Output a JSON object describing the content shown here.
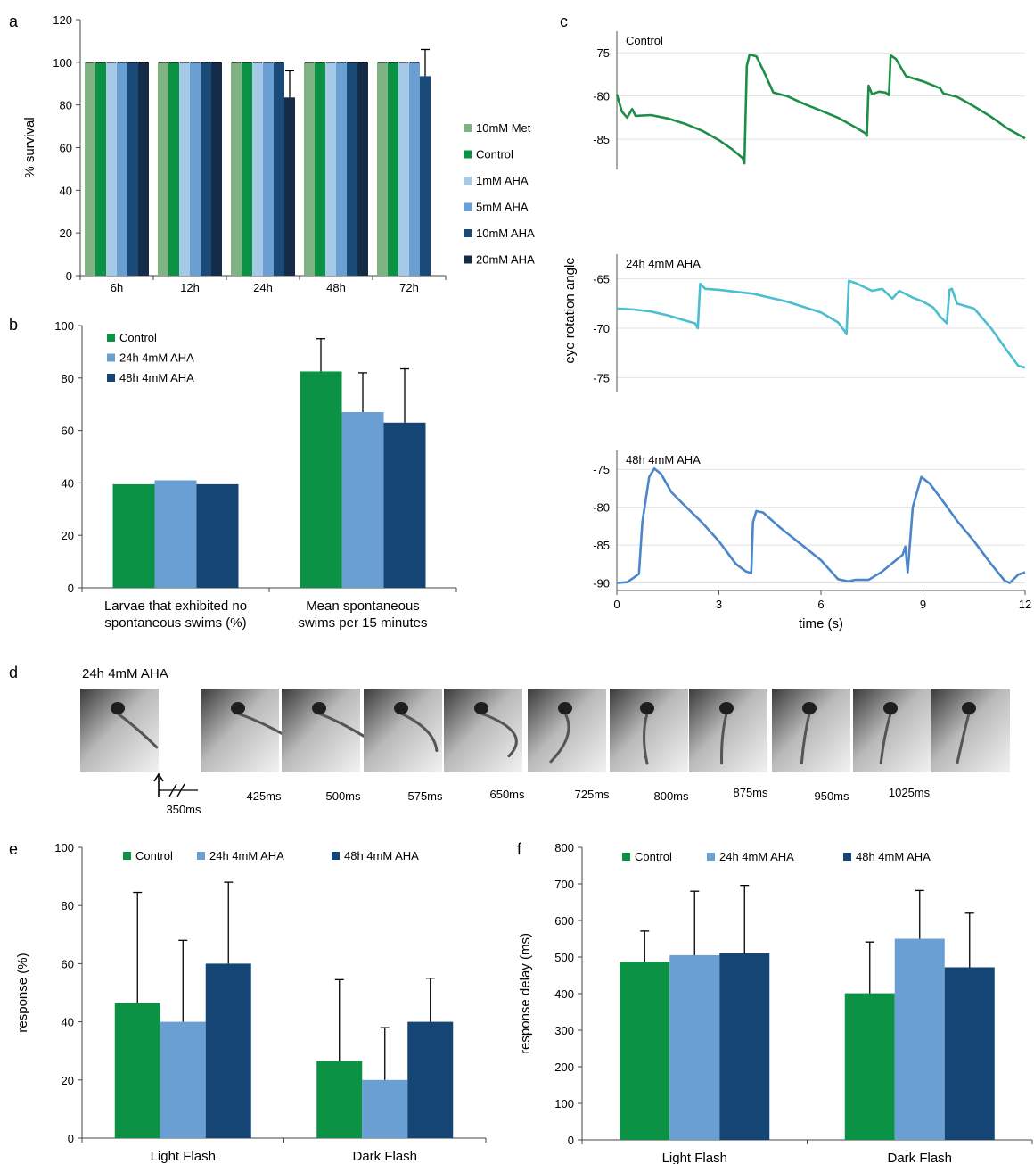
{
  "colors": {
    "met": "#7fb384",
    "control": "#0b9244",
    "aha1": "#a7c9e8",
    "aha5": "#6a9fd4",
    "aha10": "#1a4a78",
    "aha20": "#142c48",
    "light_blue": "#6a9fd4",
    "dark_blue": "#154574",
    "trace_control": "#1d8e48",
    "trace_24h": "#4dbdd0",
    "trace_48h": "#4a86c8"
  },
  "panel_labels": [
    "a",
    "b",
    "c",
    "d",
    "e",
    "f"
  ],
  "chart_data": [
    {
      "panel": "a",
      "type": "bar",
      "ylabel": "% survival",
      "ylim": [
        0,
        120
      ],
      "yticks": [
        0,
        20,
        40,
        60,
        80,
        100,
        120
      ],
      "categories": [
        "6h",
        "12h",
        "24h",
        "48h",
        "72h"
      ],
      "legend_position": "right",
      "series": [
        {
          "name": "10mM Met",
          "color_key": "met",
          "values": [
            100,
            100,
            100,
            100,
            100
          ],
          "errors": [
            0,
            0,
            0,
            0,
            0
          ]
        },
        {
          "name": "Control",
          "color_key": "control",
          "values": [
            100,
            100,
            100,
            100,
            100
          ],
          "errors": [
            0,
            0,
            0,
            0,
            0
          ]
        },
        {
          "name": "1mM AHA",
          "color_key": "aha1",
          "values": [
            100,
            100,
            100,
            100,
            100
          ],
          "errors": [
            0,
            0,
            0,
            0,
            0
          ]
        },
        {
          "name": "5mM AHA",
          "color_key": "aha5",
          "values": [
            100,
            100,
            100,
            100,
            100
          ],
          "errors": [
            0,
            0,
            0,
            0,
            0
          ]
        },
        {
          "name": "10mM AHA",
          "color_key": "aha10",
          "values": [
            100,
            100,
            100,
            100,
            93.5
          ],
          "errors": [
            0,
            0,
            0,
            0,
            12.5
          ]
        },
        {
          "name": "20mM AHA",
          "color_key": "aha20",
          "values": [
            100,
            100,
            83.5,
            100,
            0
          ],
          "errors": [
            0,
            0,
            12.5,
            0,
            0
          ]
        }
      ]
    },
    {
      "panel": "b",
      "type": "bar",
      "ylim": [
        0,
        100
      ],
      "yticks": [
        0,
        20,
        40,
        60,
        80,
        100
      ],
      "categories": [
        "Larvae that exhibited no spontaneous swims (%)",
        "Mean spontaneous swims per 15 minutes"
      ],
      "category_lines": [
        [
          "Larvae that exhibited no",
          "spontaneous swims (%)"
        ],
        [
          "Mean spontaneous",
          "swims per 15 minutes"
        ]
      ],
      "legend_position": "top-left",
      "series": [
        {
          "name": "Control",
          "color_key": "control",
          "values": [
            39.5,
            82.5
          ],
          "errors": [
            0,
            12.5
          ]
        },
        {
          "name": "24h 4mM AHA",
          "color_key": "light_blue",
          "values": [
            41,
            67
          ],
          "errors": [
            0,
            15
          ]
        },
        {
          "name": "48h 4mM AHA",
          "color_key": "dark_blue",
          "values": [
            39.5,
            63
          ],
          "errors": [
            0,
            20.5
          ]
        }
      ]
    },
    {
      "panel": "c",
      "type": "line",
      "xlabel": "time (s)",
      "ylabel": "eye rotation angle",
      "xlim": [
        0,
        12
      ],
      "xticks": [
        0,
        3,
        6,
        9,
        12
      ],
      "subplots": [
        {
          "name": "Control",
          "color_key": "trace_control",
          "ylim": [
            -88.5,
            -72.5
          ],
          "yticks": [
            -75,
            -80,
            -85
          ],
          "points": [
            [
              0,
              -79.8
            ],
            [
              0.15,
              -81.8
            ],
            [
              0.3,
              -82.5
            ],
            [
              0.45,
              -81.5
            ],
            [
              0.55,
              -82.3
            ],
            [
              1.0,
              -82.2
            ],
            [
              1.5,
              -82.6
            ],
            [
              2.0,
              -83.2
            ],
            [
              2.5,
              -84.0
            ],
            [
              3.0,
              -85.1
            ],
            [
              3.4,
              -86.2
            ],
            [
              3.7,
              -87.2
            ],
            [
              3.75,
              -87.8
            ],
            [
              3.82,
              -76.5
            ],
            [
              3.9,
              -75.2
            ],
            [
              4.1,
              -75.4
            ],
            [
              4.3,
              -77.0
            ],
            [
              4.6,
              -79.6
            ],
            [
              5.0,
              -80.0
            ],
            [
              5.5,
              -80.9
            ],
            [
              6.0,
              -81.7
            ],
            [
              6.5,
              -82.5
            ],
            [
              7.0,
              -83.6
            ],
            [
              7.3,
              -84.3
            ],
            [
              7.35,
              -84.6
            ],
            [
              7.4,
              -78.8
            ],
            [
              7.5,
              -79.8
            ],
            [
              7.7,
              -79.5
            ],
            [
              7.9,
              -79.6
            ],
            [
              8.0,
              -79.9
            ],
            [
              8.05,
              -75.3
            ],
            [
              8.2,
              -75.7
            ],
            [
              8.5,
              -77.7
            ],
            [
              9.0,
              -78.3
            ],
            [
              9.5,
              -79.1
            ],
            [
              9.6,
              -79.7
            ],
            [
              10.0,
              -80.1
            ],
            [
              10.5,
              -81.2
            ],
            [
              11.0,
              -82.4
            ],
            [
              11.5,
              -83.8
            ],
            [
              12.0,
              -84.9
            ]
          ]
        },
        {
          "name": "24h 4mM AHA",
          "color_key": "trace_24h",
          "ylim": [
            -76.5,
            -62.5
          ],
          "yticks": [
            -65,
            -70,
            -75
          ],
          "points": [
            [
              0,
              -68.0
            ],
            [
              0.5,
              -68.1
            ],
            [
              1.0,
              -68.3
            ],
            [
              1.5,
              -68.7
            ],
            [
              2.0,
              -69.2
            ],
            [
              2.3,
              -69.5
            ],
            [
              2.38,
              -70.0
            ],
            [
              2.45,
              -65.5
            ],
            [
              2.6,
              -66.0
            ],
            [
              3.0,
              -66.1
            ],
            [
              4.0,
              -66.5
            ],
            [
              5.0,
              -67.3
            ],
            [
              6.0,
              -68.4
            ],
            [
              6.5,
              -69.4
            ],
            [
              6.7,
              -70.3
            ],
            [
              6.75,
              -70.6
            ],
            [
              6.82,
              -65.2
            ],
            [
              7.0,
              -65.4
            ],
            [
              7.5,
              -66.2
            ],
            [
              7.8,
              -66.0
            ],
            [
              8.1,
              -67.0
            ],
            [
              8.3,
              -66.2
            ],
            [
              8.7,
              -66.9
            ],
            [
              9.0,
              -67.3
            ],
            [
              9.3,
              -67.9
            ],
            [
              9.5,
              -68.8
            ],
            [
              9.7,
              -69.5
            ],
            [
              9.78,
              -66.1
            ],
            [
              9.85,
              -66.0
            ],
            [
              10.0,
              -67.5
            ],
            [
              10.5,
              -68.0
            ],
            [
              11.0,
              -70.0
            ],
            [
              11.5,
              -72.4
            ],
            [
              11.8,
              -73.8
            ],
            [
              12.0,
              -74.0
            ]
          ]
        },
        {
          "name": "48h 4mM AHA",
          "color_key": "trace_48h",
          "ylim": [
            -91.0,
            -72.5
          ],
          "yticks": [
            -75,
            -80,
            -85,
            -90
          ],
          "points": [
            [
              0,
              -90.0
            ],
            [
              0.3,
              -89.9
            ],
            [
              0.5,
              -89.3
            ],
            [
              0.65,
              -88.8
            ],
            [
              0.75,
              -82.0
            ],
            [
              0.95,
              -76.0
            ],
            [
              1.1,
              -74.9
            ],
            [
              1.3,
              -75.6
            ],
            [
              1.6,
              -78.0
            ],
            [
              2.0,
              -79.8
            ],
            [
              2.5,
              -82.0
            ],
            [
              3.0,
              -84.5
            ],
            [
              3.5,
              -87.5
            ],
            [
              3.8,
              -88.5
            ],
            [
              3.95,
              -88.7
            ],
            [
              4.0,
              -82.0
            ],
            [
              4.1,
              -80.5
            ],
            [
              4.3,
              -80.7
            ],
            [
              4.8,
              -82.7
            ],
            [
              5.5,
              -85.2
            ],
            [
              6.0,
              -87.0
            ],
            [
              6.5,
              -89.5
            ],
            [
              6.8,
              -89.8
            ],
            [
              7.0,
              -89.6
            ],
            [
              7.4,
              -89.6
            ],
            [
              7.8,
              -88.5
            ],
            [
              8.2,
              -87.0
            ],
            [
              8.4,
              -86.3
            ],
            [
              8.48,
              -85.2
            ],
            [
              8.55,
              -88.6
            ],
            [
              8.7,
              -80.0
            ],
            [
              8.95,
              -76.0
            ],
            [
              9.2,
              -76.9
            ],
            [
              9.6,
              -79.3
            ],
            [
              10.0,
              -81.8
            ],
            [
              10.5,
              -84.5
            ],
            [
              11.0,
              -87.5
            ],
            [
              11.4,
              -89.7
            ],
            [
              11.55,
              -90.0
            ],
            [
              11.8,
              -88.9
            ],
            [
              12.0,
              -88.6
            ]
          ]
        }
      ]
    },
    {
      "panel": "e",
      "type": "bar",
      "ylabel": "response (%)",
      "ylim": [
        0,
        100
      ],
      "yticks": [
        0,
        20,
        40,
        60,
        80,
        100
      ],
      "categories": [
        "Light Flash",
        "Dark Flash"
      ],
      "legend_position": "top",
      "series": [
        {
          "name": "Control",
          "color_key": "control",
          "values": [
            46.5,
            26.5
          ],
          "errors": [
            38,
            28
          ]
        },
        {
          "name": "24h 4mM AHA",
          "color_key": "light_blue",
          "values": [
            40,
            20
          ],
          "errors": [
            28,
            18
          ]
        },
        {
          "name": "48h 4mM AHA",
          "color_key": "dark_blue",
          "values": [
            60,
            40
          ],
          "errors": [
            28,
            15
          ]
        }
      ]
    },
    {
      "panel": "f",
      "type": "bar",
      "ylabel": "response delay (ms)",
      "ylim": [
        0,
        800
      ],
      "yticks": [
        0,
        100,
        200,
        300,
        400,
        500,
        600,
        700,
        800
      ],
      "categories": [
        "Light Flash",
        "Dark Flash"
      ],
      "legend_position": "top",
      "series": [
        {
          "name": "Control",
          "color_key": "control",
          "values": [
            487,
            401
          ],
          "errors": [
            84,
            140
          ]
        },
        {
          "name": "24h 4mM AHA",
          "color_key": "light_blue",
          "values": [
            505,
            550
          ],
          "errors": [
            175,
            132
          ]
        },
        {
          "name": "48h 4mM AHA",
          "color_key": "dark_blue",
          "values": [
            510,
            472
          ],
          "errors": [
            186,
            148
          ]
        }
      ]
    }
  ],
  "filmstrip": {
    "title": "24h 4mM AHA",
    "start_label": "350ms",
    "frames": [
      {
        "label": "",
        "angle": 40,
        "curl": 0
      },
      {
        "label": "425ms",
        "angle": 38,
        "curl": 0
      },
      {
        "label": "500ms",
        "angle": 20,
        "curl": 50
      },
      {
        "label": "575ms",
        "angle": 10,
        "curl": 120
      },
      {
        "label": "650ms",
        "angle": -35,
        "curl": 60
      },
      {
        "label": "725ms",
        "angle": -20,
        "curl": -20
      },
      {
        "label": "800ms",
        "angle": -25,
        "curl": -10
      },
      {
        "label": "875ms",
        "angle": -28,
        "curl": -5
      },
      {
        "label": "950ms",
        "angle": -30,
        "curl": -5
      },
      {
        "label": "1025ms",
        "angle": -32,
        "curl": 0
      }
    ]
  }
}
